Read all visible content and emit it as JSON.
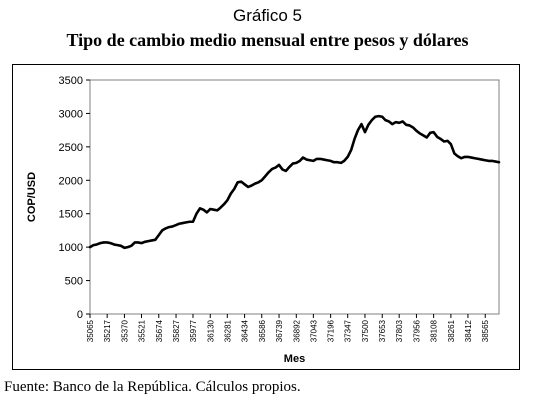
{
  "figure_label": "Gráfico 5",
  "figure_title": "Tipo de cambio medio mensual entre pesos y dólares",
  "source": "Fuente: Banco de la República. Cálculos propios.",
  "chart_data": {
    "type": "line",
    "title": "",
    "xlabel": "Mes",
    "ylabel": "COP/USD",
    "ylim": [
      0,
      3500
    ],
    "yticks": [
      0,
      500,
      1000,
      1500,
      2000,
      2500,
      3000,
      3500
    ],
    "xticks": [
      "35065",
      "35217",
      "35370",
      "35521",
      "35674",
      "35827",
      "35977",
      "36130",
      "36281",
      "36434",
      "36586",
      "36739",
      "36892",
      "37043",
      "37196",
      "37347",
      "37500",
      "37653",
      "37803",
      "37956",
      "38108",
      "38261",
      "38412",
      "38565"
    ],
    "grid": "horizontal",
    "line_color": "#000000",
    "plot_background": "#ffffff",
    "series": [
      {
        "x": [
          35065,
          35096,
          35125,
          35156,
          35186,
          35217,
          35247,
          35278,
          35309,
          35339,
          35370,
          35400,
          35431,
          35462,
          35490,
          35521,
          35551,
          35582,
          35612,
          35643,
          35674,
          35704,
          35735,
          35765,
          35796,
          35827,
          35855,
          35886,
          35916,
          35947,
          35977,
          36008,
          36039,
          36069,
          36100,
          36130,
          36161,
          36192,
          36220,
          36251,
          36281,
          36312,
          36342,
          36373,
          36404,
          36434,
          36465,
          36495,
          36526,
          36557,
          36586,
          36617,
          36647,
          36678,
          36708,
          36739,
          36770,
          36800,
          36831,
          36861,
          36892,
          36923,
          36951,
          36982,
          37012,
          37043,
          37073,
          37104,
          37135,
          37165,
          37196,
          37226,
          37257,
          37288,
          37316,
          37347,
          37377,
          37408,
          37438,
          37469,
          37500,
          37530,
          37561,
          37591,
          37622,
          37653,
          37681,
          37712,
          37742,
          37773,
          37803,
          37834,
          37865,
          37895,
          37926,
          37956,
          37987,
          38018,
          38047,
          38078,
          38108,
          38139,
          38169,
          38200,
          38231,
          38261,
          38292,
          38322,
          38353,
          38384,
          38412,
          38443,
          38473,
          38504,
          38534,
          38565,
          38596,
          38626,
          38657,
          38687
        ],
        "values": [
          1000,
          1030,
          1040,
          1060,
          1070,
          1070,
          1060,
          1040,
          1030,
          1020,
          990,
          1000,
          1020,
          1070,
          1070,
          1060,
          1080,
          1090,
          1100,
          1110,
          1180,
          1250,
          1280,
          1300,
          1310,
          1330,
          1350,
          1360,
          1370,
          1380,
          1380,
          1500,
          1580,
          1560,
          1520,
          1570,
          1560,
          1550,
          1590,
          1640,
          1700,
          1800,
          1870,
          1970,
          1980,
          1940,
          1900,
          1920,
          1950,
          1970,
          2000,
          2060,
          2120,
          2170,
          2190,
          2230,
          2160,
          2140,
          2200,
          2250,
          2260,
          2290,
          2340,
          2310,
          2300,
          2290,
          2320,
          2320,
          2310,
          2300,
          2290,
          2270,
          2270,
          2260,
          2290,
          2350,
          2450,
          2620,
          2750,
          2840,
          2720,
          2830,
          2900,
          2950,
          2960,
          2950,
          2900,
          2880,
          2840,
          2870,
          2860,
          2880,
          2830,
          2820,
          2790,
          2740,
          2700,
          2670,
          2640,
          2710,
          2720,
          2650,
          2620,
          2580,
          2590,
          2540,
          2400,
          2360,
          2330,
          2350,
          2350,
          2340,
          2330,
          2320,
          2310,
          2300,
          2290,
          2290,
          2280,
          2270
        ]
      }
    ]
  }
}
